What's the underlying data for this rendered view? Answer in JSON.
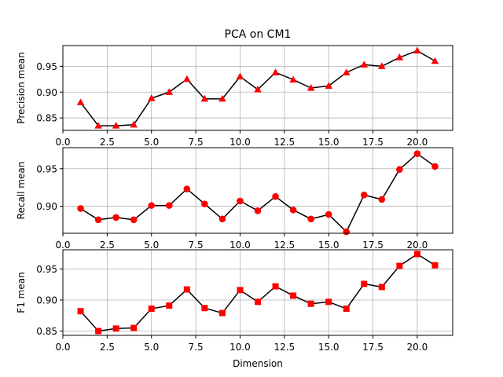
{
  "chart_data": {
    "type": "line",
    "title": "PCA on CM1",
    "xlabel": "Dimension",
    "x": [
      1,
      2,
      3,
      4,
      5,
      6,
      7,
      8,
      9,
      10,
      11,
      12,
      13,
      14,
      15,
      16,
      17,
      18,
      19,
      20,
      21
    ],
    "xlim": [
      0,
      22
    ],
    "xticks": [
      0.0,
      2.5,
      5.0,
      7.5,
      10.0,
      12.5,
      15.0,
      17.5,
      20.0
    ],
    "xtick_labels": [
      "0.0",
      "2.5",
      "5.0",
      "7.5",
      "10.0",
      "12.5",
      "15.0",
      "17.5",
      "20.0"
    ],
    "grid": true,
    "line_color": "#000000",
    "marker_color": "#ff0000",
    "panels": [
      {
        "ylabel": "Precision mean",
        "marker": "triangle",
        "ylim": [
          0.826,
          0.99
        ],
        "yticks": [
          0.85,
          0.9,
          0.95
        ],
        "ytick_labels": [
          "0.85",
          "0.90",
          "0.95"
        ],
        "values": [
          0.88,
          0.835,
          0.835,
          0.837,
          0.888,
          0.9,
          0.925,
          0.887,
          0.887,
          0.93,
          0.905,
          0.938,
          0.924,
          0.908,
          0.912,
          0.938,
          0.953,
          0.95,
          0.967,
          0.98,
          0.96
        ]
      },
      {
        "ylabel": "Recall mean",
        "marker": "circle",
        "ylim": [
          0.864,
          0.978
        ],
        "yticks": [
          0.9,
          0.95
        ],
        "ytick_labels": [
          "0.90",
          "0.95"
        ],
        "values": [
          0.897,
          0.882,
          0.885,
          0.882,
          0.901,
          0.901,
          0.923,
          0.903,
          0.883,
          0.907,
          0.894,
          0.913,
          0.895,
          0.883,
          0.889,
          0.866,
          0.915,
          0.909,
          0.949,
          0.97,
          0.953
        ]
      },
      {
        "ylabel": "F1 mean",
        "marker": "square",
        "ylim": [
          0.843,
          0.981
        ],
        "yticks": [
          0.85,
          0.9,
          0.95
        ],
        "ytick_labels": [
          "0.85",
          "0.90",
          "0.95"
        ],
        "values": [
          0.882,
          0.85,
          0.854,
          0.855,
          0.886,
          0.891,
          0.917,
          0.887,
          0.879,
          0.916,
          0.897,
          0.922,
          0.907,
          0.894,
          0.897,
          0.886,
          0.926,
          0.921,
          0.955,
          0.974,
          0.956
        ]
      }
    ]
  }
}
